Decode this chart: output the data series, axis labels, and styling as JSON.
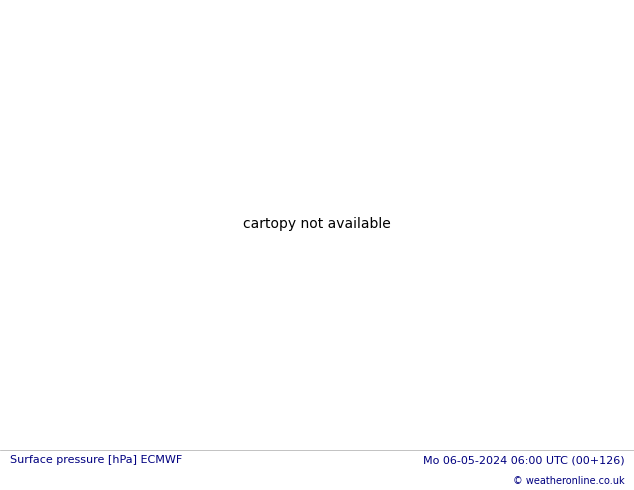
{
  "title_left": "Surface pressure [hPa] ECMWF",
  "title_right": "Mo 06-05-2024 06:00 UTC (00+126)",
  "copyright": "© weatheronline.co.uk",
  "ocean_color": "#d8e8f0",
  "land_color": "#c8e8a0",
  "mountain_color": "#b8d890",
  "border_color": "#808080",
  "figsize": [
    6.34,
    4.9
  ],
  "dpi": 100,
  "bottom_bar_color": "#f0f0f0",
  "bottom_text_color": "#000080",
  "lon_min": -175,
  "lon_max": -40,
  "lat_min": 10,
  "lat_max": 80
}
